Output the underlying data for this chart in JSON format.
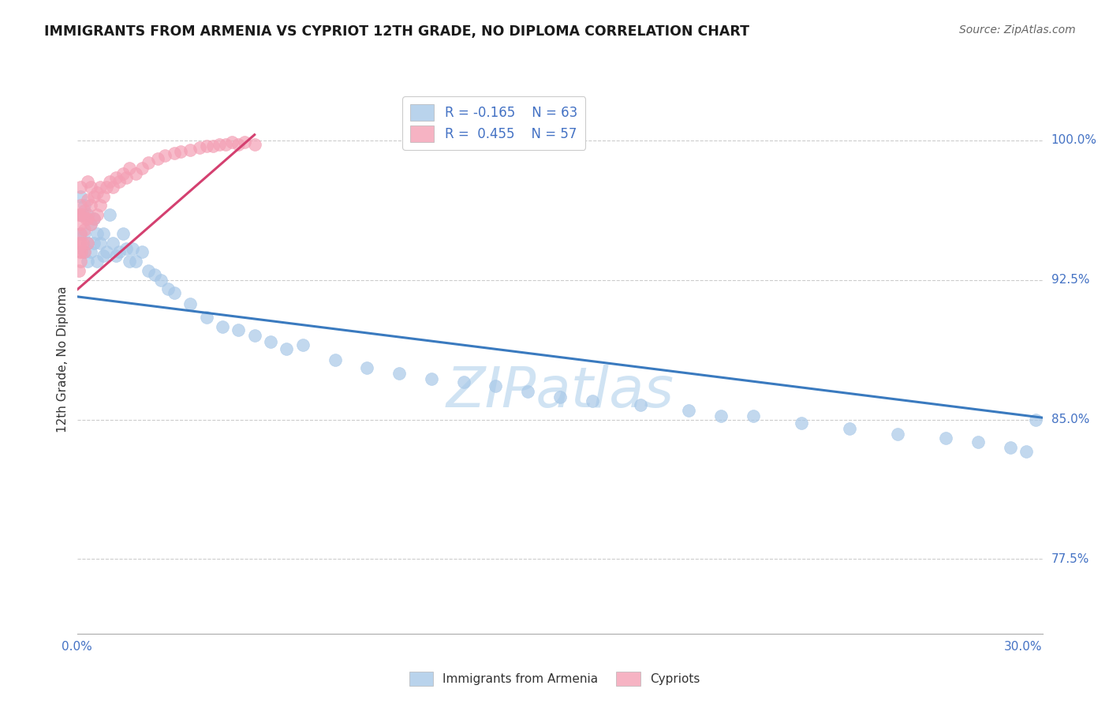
{
  "title": "IMMIGRANTS FROM ARMENIA VS CYPRIOT 12TH GRADE, NO DIPLOMA CORRELATION CHART",
  "source": "Source: ZipAtlas.com",
  "ylabel": "12th Grade, No Diploma",
  "ylabel_ticks": [
    "100.0%",
    "92.5%",
    "85.0%",
    "77.5%"
  ],
  "ylabel_values": [
    1.0,
    0.925,
    0.85,
    0.775
  ],
  "xmin": 0.0,
  "xmax": 0.3,
  "ymin": 0.735,
  "ymax": 1.03,
  "blue_color": "#a8c8e8",
  "pink_color": "#f4a0b5",
  "blue_line_color": "#3a7abf",
  "pink_line_color": "#d44070",
  "blue_scatter_x": [
    0.001,
    0.001,
    0.001,
    0.002,
    0.002,
    0.002,
    0.003,
    0.003,
    0.003,
    0.004,
    0.004,
    0.005,
    0.005,
    0.006,
    0.006,
    0.007,
    0.008,
    0.008,
    0.009,
    0.01,
    0.011,
    0.012,
    0.013,
    0.014,
    0.015,
    0.016,
    0.017,
    0.018,
    0.02,
    0.022,
    0.024,
    0.026,
    0.028,
    0.03,
    0.035,
    0.04,
    0.045,
    0.05,
    0.055,
    0.06,
    0.065,
    0.07,
    0.08,
    0.09,
    0.1,
    0.11,
    0.12,
    0.13,
    0.14,
    0.15,
    0.16,
    0.175,
    0.19,
    0.2,
    0.21,
    0.225,
    0.24,
    0.255,
    0.27,
    0.28,
    0.29,
    0.295,
    0.298
  ],
  "blue_scatter_y": [
    0.97,
    0.96,
    0.95,
    0.965,
    0.95,
    0.94,
    0.96,
    0.945,
    0.935,
    0.955,
    0.94,
    0.958,
    0.945,
    0.95,
    0.935,
    0.945,
    0.95,
    0.938,
    0.94,
    0.96,
    0.945,
    0.938,
    0.94,
    0.95,
    0.942,
    0.935,
    0.942,
    0.935,
    0.94,
    0.93,
    0.928,
    0.925,
    0.92,
    0.918,
    0.912,
    0.905,
    0.9,
    0.898,
    0.895,
    0.892,
    0.888,
    0.89,
    0.882,
    0.878,
    0.875,
    0.872,
    0.87,
    0.868,
    0.865,
    0.862,
    0.86,
    0.858,
    0.855,
    0.852,
    0.852,
    0.848,
    0.845,
    0.842,
    0.84,
    0.838,
    0.835,
    0.833,
    0.85
  ],
  "pink_scatter_x": [
    0.0003,
    0.0005,
    0.0005,
    0.0007,
    0.0008,
    0.0008,
    0.001,
    0.001,
    0.001,
    0.001,
    0.001,
    0.0012,
    0.0015,
    0.0015,
    0.002,
    0.002,
    0.002,
    0.0025,
    0.003,
    0.003,
    0.003,
    0.003,
    0.004,
    0.004,
    0.004,
    0.005,
    0.005,
    0.006,
    0.006,
    0.007,
    0.007,
    0.008,
    0.009,
    0.01,
    0.011,
    0.012,
    0.013,
    0.014,
    0.015,
    0.016,
    0.018,
    0.02,
    0.022,
    0.025,
    0.027,
    0.03,
    0.032,
    0.035,
    0.038,
    0.04,
    0.042,
    0.044,
    0.046,
    0.048,
    0.05,
    0.052,
    0.055
  ],
  "pink_scatter_y": [
    0.93,
    0.945,
    0.96,
    0.94,
    0.95,
    0.96,
    0.935,
    0.945,
    0.955,
    0.965,
    0.975,
    0.94,
    0.945,
    0.96,
    0.94,
    0.952,
    0.962,
    0.958,
    0.945,
    0.958,
    0.968,
    0.978,
    0.955,
    0.965,
    0.975,
    0.958,
    0.97,
    0.96,
    0.972,
    0.965,
    0.975,
    0.97,
    0.975,
    0.978,
    0.975,
    0.98,
    0.978,
    0.982,
    0.98,
    0.985,
    0.982,
    0.985,
    0.988,
    0.99,
    0.992,
    0.993,
    0.994,
    0.995,
    0.996,
    0.997,
    0.997,
    0.998,
    0.998,
    0.999,
    0.998,
    0.999,
    0.998
  ],
  "blue_trend_x": [
    0.0,
    0.3
  ],
  "blue_trend_y": [
    0.916,
    0.851
  ],
  "pink_trend_x": [
    0.0,
    0.055
  ],
  "pink_trend_y": [
    0.92,
    1.003
  ],
  "watermark_text": "ZIPatlas",
  "watermark_color": "#c8dff2",
  "legend1_label": "R = -0.165    N = 63",
  "legend2_label": "R =  0.455    N = 57",
  "legend_text_color": "#4472c4",
  "bottom_legend1": "Immigrants from Armenia",
  "bottom_legend2": "Cypriots",
  "axis_color": "#4472c4"
}
